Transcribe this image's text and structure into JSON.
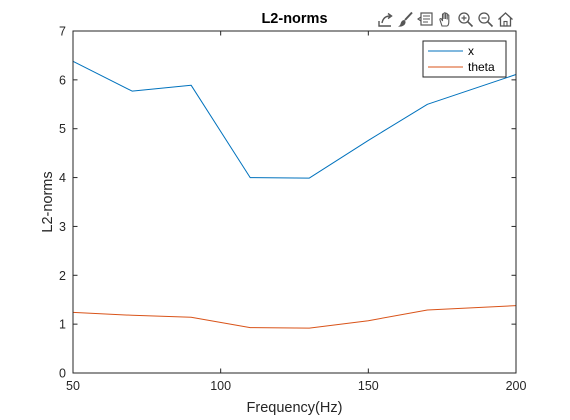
{
  "toolbar": {
    "icons": [
      "export-icon",
      "brush-icon",
      "datatip-icon",
      "pan-icon",
      "zoom-in-icon",
      "zoom-out-icon",
      "home-icon"
    ]
  },
  "chart_data": {
    "type": "line",
    "title": "L2-norms",
    "xlabel": "Frequency(Hz)",
    "ylabel": "L2-norms",
    "xlim": [
      50,
      200
    ],
    "ylim": [
      0,
      7
    ],
    "xticks": [
      "50",
      "100",
      "150",
      "200"
    ],
    "yticks": [
      "0",
      "1",
      "2",
      "3",
      "4",
      "5",
      "6",
      "7"
    ],
    "x": [
      50,
      70,
      90,
      110,
      130,
      150,
      170,
      200
    ],
    "grid": false,
    "legend_position": "top-right",
    "series": [
      {
        "name": "x",
        "color": "#0072bd",
        "values": [
          6.38,
          5.77,
          5.89,
          4.0,
          3.99,
          4.76,
          5.5,
          6.11
        ]
      },
      {
        "name": "theta",
        "color": "#d95319",
        "values": [
          1.24,
          1.18,
          1.14,
          0.93,
          0.92,
          1.07,
          1.29,
          1.38
        ]
      }
    ]
  }
}
